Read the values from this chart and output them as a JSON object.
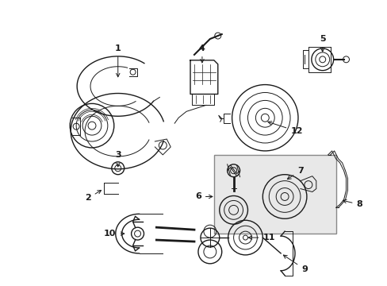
{
  "background_color": "#ffffff",
  "fig_width": 4.89,
  "fig_height": 3.6,
  "dpi": 100,
  "line_color": "#1a1a1a",
  "box_fill": "#e8e8e8",
  "box_edge": "#888888"
}
